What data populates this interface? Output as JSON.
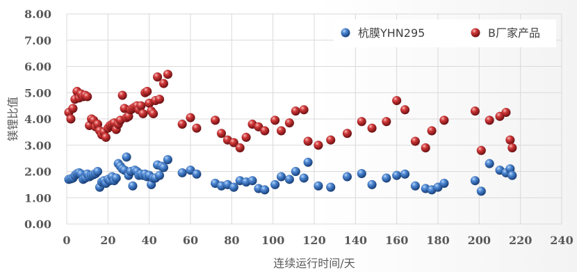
{
  "chart_data": {
    "type": "scatter",
    "title": "",
    "xlabel": "连续运行时间/天",
    "ylabel": "镁锂比值",
    "xlim": [
      0,
      240
    ],
    "ylim": [
      0,
      8
    ],
    "x_ticks": [
      0,
      20,
      40,
      60,
      80,
      100,
      120,
      140,
      160,
      180,
      200,
      220,
      240
    ],
    "y_ticks": [
      "0.00",
      "1.00",
      "2.00",
      "3.00",
      "4.00",
      "5.00",
      "6.00",
      "7.00",
      "8.00"
    ],
    "grid": true,
    "legend_position": "top-right",
    "series": [
      {
        "name": "杭膜YHN295",
        "color": "#2e6bb8",
        "points": [
          [
            1,
            1.7
          ],
          [
            2,
            1.72
          ],
          [
            3,
            1.75
          ],
          [
            4,
            1.85
          ],
          [
            5,
            1.92
          ],
          [
            6,
            1.95
          ],
          [
            7,
            1.9
          ],
          [
            8,
            1.7
          ],
          [
            9,
            1.75
          ],
          [
            10,
            1.9
          ],
          [
            11,
            1.8
          ],
          [
            12,
            1.85
          ],
          [
            13,
            1.88
          ],
          [
            14,
            1.92
          ],
          [
            15,
            2.0
          ],
          [
            16,
            1.4
          ],
          [
            17,
            1.6
          ],
          [
            18,
            1.65
          ],
          [
            19,
            1.55
          ],
          [
            20,
            1.7
          ],
          [
            21,
            1.65
          ],
          [
            22,
            1.8
          ],
          [
            23,
            1.65
          ],
          [
            24,
            1.75
          ],
          [
            25,
            2.3
          ],
          [
            26,
            2.2
          ],
          [
            27,
            2.1
          ],
          [
            28,
            2.05
          ],
          [
            29,
            2.55
          ],
          [
            30,
            1.85
          ],
          [
            31,
            2.0
          ],
          [
            32,
            1.45
          ],
          [
            33,
            2.05
          ],
          [
            34,
            2.0
          ],
          [
            35,
            1.85
          ],
          [
            36,
            1.9
          ],
          [
            37,
            1.85
          ],
          [
            38,
            1.9
          ],
          [
            39,
            1.8
          ],
          [
            40,
            1.85
          ],
          [
            41,
            1.5
          ],
          [
            42,
            1.75
          ],
          [
            43,
            1.75
          ],
          [
            44,
            2.25
          ],
          [
            45,
            1.85
          ],
          [
            46,
            2.2
          ],
          [
            47,
            2.15
          ],
          [
            49,
            2.45
          ],
          [
            56,
            1.95
          ],
          [
            60,
            2.05
          ],
          [
            63,
            1.9
          ],
          [
            72,
            1.55
          ],
          [
            75,
            1.45
          ],
          [
            78,
            1.5
          ],
          [
            81,
            1.4
          ],
          [
            84,
            1.65
          ],
          [
            87,
            1.6
          ],
          [
            90,
            1.65
          ],
          [
            93,
            1.35
          ],
          [
            96,
            1.3
          ],
          [
            101,
            1.5
          ],
          [
            104,
            1.8
          ],
          [
            108,
            1.7
          ],
          [
            111,
            2.0
          ],
          [
            115,
            1.75
          ],
          [
            117,
            2.35
          ],
          [
            122,
            1.45
          ],
          [
            128,
            1.4
          ],
          [
            136,
            1.8
          ],
          [
            143,
            1.92
          ],
          [
            148,
            1.5
          ],
          [
            155,
            1.75
          ],
          [
            160,
            1.85
          ],
          [
            164,
            1.9
          ],
          [
            169,
            1.45
          ],
          [
            174,
            1.35
          ],
          [
            177,
            1.3
          ],
          [
            180,
            1.4
          ],
          [
            183,
            1.55
          ],
          [
            198,
            1.65
          ],
          [
            201,
            1.25
          ],
          [
            205,
            2.3
          ],
          [
            210,
            2.05
          ],
          [
            213,
            1.95
          ],
          [
            215,
            2.1
          ],
          [
            216,
            1.85
          ]
        ]
      },
      {
        "name": "B厂家产品",
        "color": "#c0272d",
        "points": [
          [
            1,
            4.25
          ],
          [
            2,
            4.0
          ],
          [
            3,
            4.4
          ],
          [
            4,
            4.75
          ],
          [
            5,
            5.05
          ],
          [
            6,
            4.8
          ],
          [
            7,
            4.95
          ],
          [
            8,
            4.85
          ],
          [
            9,
            4.9
          ],
          [
            10,
            4.85
          ],
          [
            11,
            3.75
          ],
          [
            12,
            4.0
          ],
          [
            13,
            3.95
          ],
          [
            14,
            3.7
          ],
          [
            15,
            3.8
          ],
          [
            16,
            3.55
          ],
          [
            17,
            3.4
          ],
          [
            18,
            3.5
          ],
          [
            19,
            3.3
          ],
          [
            20,
            3.65
          ],
          [
            21,
            3.75
          ],
          [
            22,
            3.8
          ],
          [
            23,
            3.85
          ],
          [
            24,
            3.6
          ],
          [
            25,
            3.8
          ],
          [
            26,
            3.95
          ],
          [
            27,
            4.9
          ],
          [
            28,
            4.4
          ],
          [
            29,
            4.05
          ],
          [
            30,
            4.1
          ],
          [
            31,
            4.35
          ],
          [
            32,
            4.4
          ],
          [
            33,
            4.45
          ],
          [
            34,
            4.5
          ],
          [
            35,
            4.35
          ],
          [
            36,
            4.5
          ],
          [
            37,
            4.2
          ],
          [
            38,
            5.0
          ],
          [
            39,
            5.05
          ],
          [
            40,
            4.6
          ],
          [
            41,
            4.3
          ],
          [
            42,
            4.2
          ],
          [
            43,
            4.7
          ],
          [
            44,
            5.6
          ],
          [
            45,
            4.75
          ],
          [
            47,
            5.35
          ],
          [
            49,
            5.7
          ],
          [
            56,
            3.8
          ],
          [
            60,
            4.05
          ],
          [
            63,
            3.65
          ],
          [
            72,
            3.95
          ],
          [
            75,
            3.45
          ],
          [
            78,
            3.2
          ],
          [
            81,
            3.1
          ],
          [
            84,
            2.9
          ],
          [
            87,
            3.3
          ],
          [
            90,
            3.8
          ],
          [
            93,
            3.7
          ],
          [
            96,
            3.55
          ],
          [
            101,
            3.95
          ],
          [
            104,
            3.55
          ],
          [
            108,
            3.85
          ],
          [
            111,
            4.3
          ],
          [
            115,
            4.35
          ],
          [
            117,
            3.15
          ],
          [
            122,
            3.0
          ],
          [
            128,
            3.2
          ],
          [
            136,
            3.45
          ],
          [
            143,
            3.9
          ],
          [
            148,
            3.65
          ],
          [
            155,
            3.9
          ],
          [
            160,
            4.7
          ],
          [
            164,
            4.35
          ],
          [
            169,
            3.15
          ],
          [
            174,
            2.9
          ],
          [
            177,
            3.55
          ],
          [
            183,
            3.95
          ],
          [
            198,
            4.3
          ],
          [
            201,
            2.8
          ],
          [
            205,
            3.95
          ],
          [
            210,
            4.1
          ],
          [
            213,
            4.25
          ],
          [
            215,
            3.2
          ],
          [
            216,
            2.9
          ]
        ]
      }
    ]
  }
}
